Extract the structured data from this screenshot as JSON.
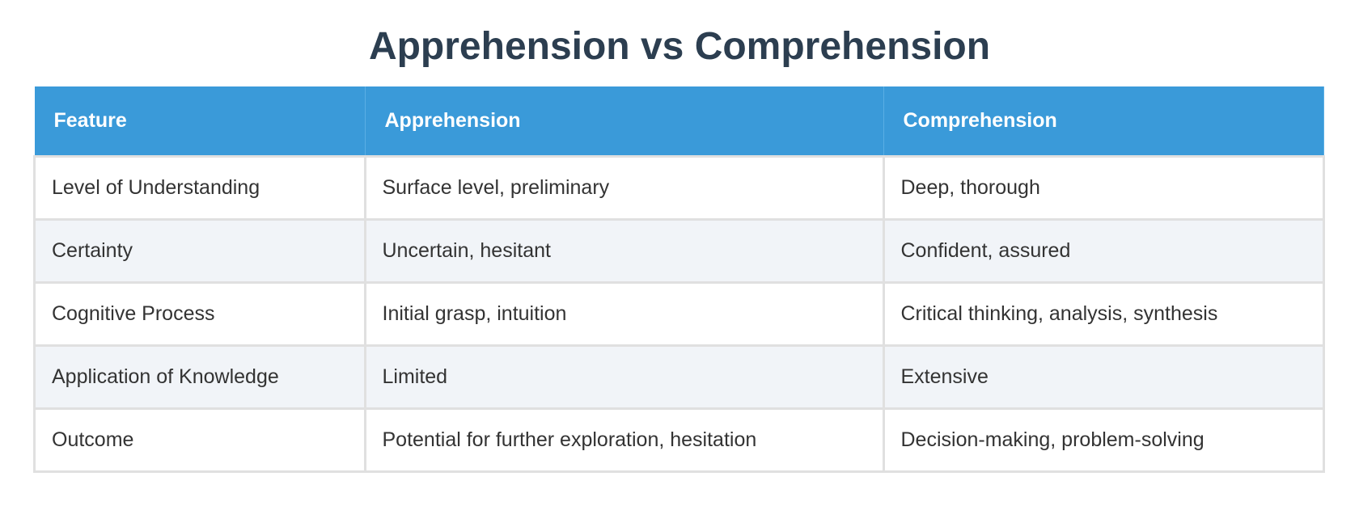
{
  "title": "Apprehension vs Comprehension",
  "table": {
    "columns": [
      "Feature",
      "Apprehension",
      "Comprehension"
    ],
    "rows": [
      [
        "Level of Understanding",
        "Surface level, preliminary",
        "Deep, thorough"
      ],
      [
        "Certainty",
        "Uncertain, hesitant",
        "Confident, assured"
      ],
      [
        "Cognitive Process",
        "Initial grasp, intuition",
        "Critical thinking, analysis, synthesis"
      ],
      [
        "Application of Knowledge",
        "Limited",
        "Extensive"
      ],
      [
        "Outcome",
        "Potential for further exploration, hesitation",
        "Decision-making, problem-solving"
      ]
    ]
  }
}
